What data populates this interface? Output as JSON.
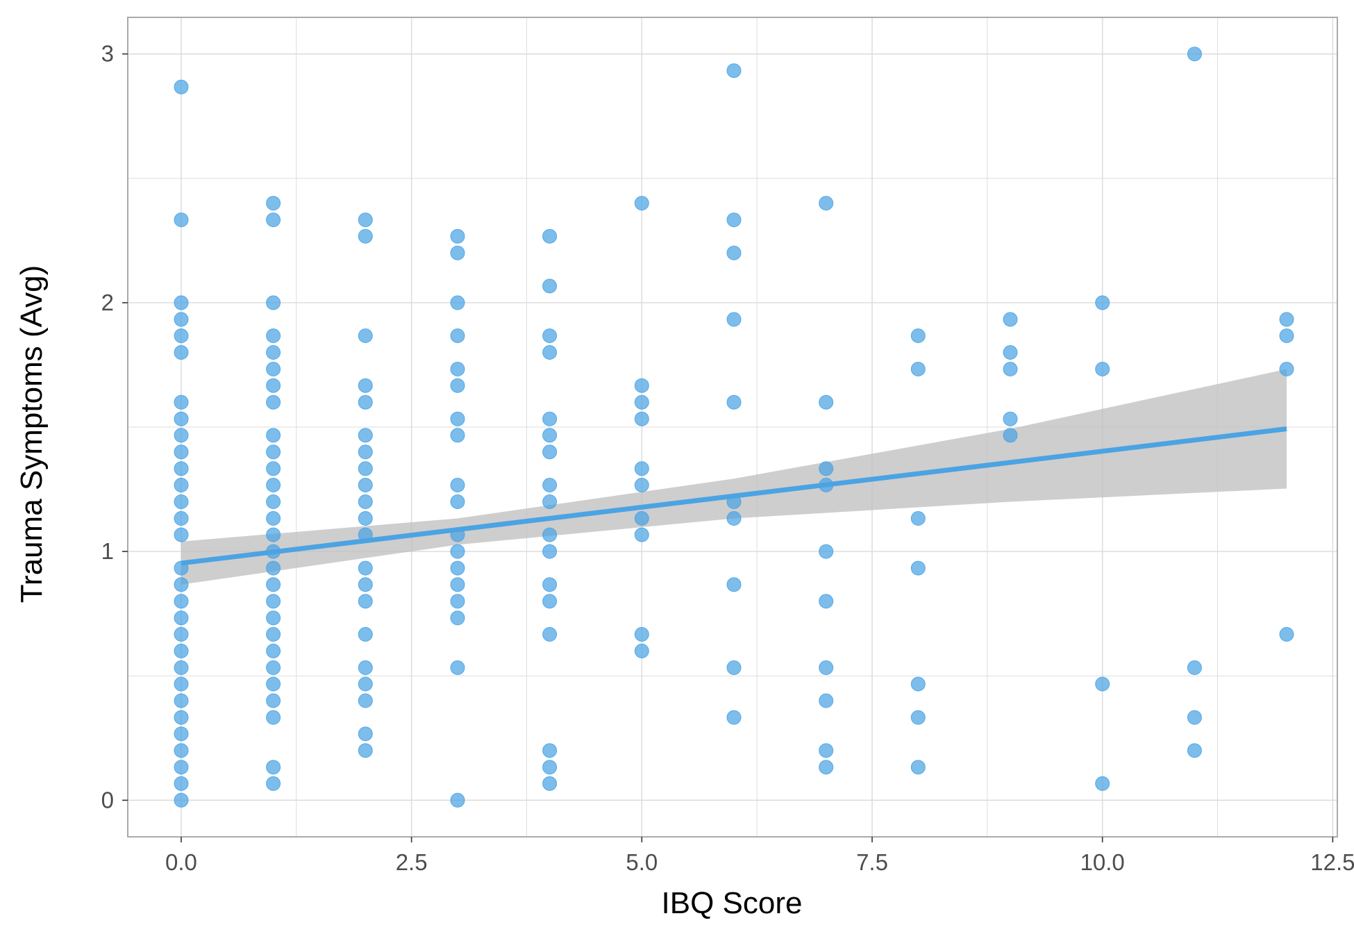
{
  "chart_data": {
    "type": "scatter",
    "title": "",
    "xlabel": "IBQ Score",
    "ylabel": "Trauma Symptoms (Avg)",
    "xlim": [
      -0.58,
      12.55
    ],
    "ylim": [
      -0.147,
      3.147
    ],
    "x_ticks": [
      0,
      2.5,
      5,
      7.5,
      10,
      12.5
    ],
    "x_tick_labels": [
      "0.0",
      "2.5",
      "5.0",
      "7.5",
      "10.0",
      "12.5"
    ],
    "y_ticks": [
      0,
      1,
      2,
      3
    ],
    "y_tick_labels": [
      "0",
      "1",
      "2",
      "3"
    ],
    "grid": true,
    "legend": "none",
    "point_color": "#4BA3E3",
    "fit_color": "#4BA3E3",
    "band_color": "#BEBEBE",
    "panel_border_color": "#AAAAAA",
    "grid_color": "#DDDDDD",
    "points": [
      [
        0,
        2.867
      ],
      [
        0,
        2.333
      ],
      [
        0,
        2.0
      ],
      [
        0,
        1.933
      ],
      [
        0,
        1.867
      ],
      [
        0,
        1.8
      ],
      [
        0,
        1.6
      ],
      [
        0,
        1.533
      ],
      [
        0,
        1.467
      ],
      [
        0,
        1.4
      ],
      [
        0,
        1.333
      ],
      [
        0,
        1.267
      ],
      [
        0,
        1.2
      ],
      [
        0,
        1.133
      ],
      [
        0,
        1.067
      ],
      [
        0,
        0.933
      ],
      [
        0,
        0.867
      ],
      [
        0,
        0.8
      ],
      [
        0,
        0.733
      ],
      [
        0,
        0.667
      ],
      [
        0,
        0.6
      ],
      [
        0,
        0.533
      ],
      [
        0,
        0.467
      ],
      [
        0,
        0.4
      ],
      [
        0,
        0.333
      ],
      [
        0,
        0.267
      ],
      [
        0,
        0.2
      ],
      [
        0,
        0.133
      ],
      [
        0,
        0.067
      ],
      [
        0,
        0.0
      ],
      [
        1,
        2.4
      ],
      [
        1,
        2.333
      ],
      [
        1,
        2.0
      ],
      [
        1,
        1.867
      ],
      [
        1,
        1.8
      ],
      [
        1,
        1.733
      ],
      [
        1,
        1.667
      ],
      [
        1,
        1.6
      ],
      [
        1,
        1.467
      ],
      [
        1,
        1.4
      ],
      [
        1,
        1.333
      ],
      [
        1,
        1.267
      ],
      [
        1,
        1.2
      ],
      [
        1,
        1.133
      ],
      [
        1,
        1.067
      ],
      [
        1,
        1.0
      ],
      [
        1,
        0.933
      ],
      [
        1,
        0.867
      ],
      [
        1,
        0.8
      ],
      [
        1,
        0.733
      ],
      [
        1,
        0.667
      ],
      [
        1,
        0.6
      ],
      [
        1,
        0.533
      ],
      [
        1,
        0.467
      ],
      [
        1,
        0.4
      ],
      [
        1,
        0.333
      ],
      [
        1,
        0.133
      ],
      [
        1,
        0.067
      ],
      [
        2,
        2.333
      ],
      [
        2,
        2.267
      ],
      [
        2,
        1.867
      ],
      [
        2,
        1.667
      ],
      [
        2,
        1.6
      ],
      [
        2,
        1.467
      ],
      [
        2,
        1.4
      ],
      [
        2,
        1.333
      ],
      [
        2,
        1.267
      ],
      [
        2,
        1.2
      ],
      [
        2,
        1.133
      ],
      [
        2,
        1.067
      ],
      [
        2,
        0.933
      ],
      [
        2,
        0.867
      ],
      [
        2,
        0.8
      ],
      [
        2,
        0.667
      ],
      [
        2,
        0.533
      ],
      [
        2,
        0.467
      ],
      [
        2,
        0.4
      ],
      [
        2,
        0.267
      ],
      [
        2,
        0.2
      ],
      [
        3,
        2.267
      ],
      [
        3,
        2.2
      ],
      [
        3,
        2.0
      ],
      [
        3,
        1.867
      ],
      [
        3,
        1.733
      ],
      [
        3,
        1.667
      ],
      [
        3,
        1.533
      ],
      [
        3,
        1.467
      ],
      [
        3,
        1.267
      ],
      [
        3,
        1.2
      ],
      [
        3,
        1.067
      ],
      [
        3,
        1.0
      ],
      [
        3,
        0.933
      ],
      [
        3,
        0.867
      ],
      [
        3,
        0.8
      ],
      [
        3,
        0.733
      ],
      [
        3,
        0.533
      ],
      [
        3,
        0.0
      ],
      [
        4,
        2.267
      ],
      [
        4,
        2.067
      ],
      [
        4,
        1.867
      ],
      [
        4,
        1.8
      ],
      [
        4,
        1.533
      ],
      [
        4,
        1.467
      ],
      [
        4,
        1.4
      ],
      [
        4,
        1.267
      ],
      [
        4,
        1.2
      ],
      [
        4,
        1.067
      ],
      [
        4,
        1.0
      ],
      [
        4,
        0.867
      ],
      [
        4,
        0.8
      ],
      [
        4,
        0.667
      ],
      [
        4,
        0.2
      ],
      [
        4,
        0.133
      ],
      [
        4,
        0.067
      ],
      [
        5,
        2.4
      ],
      [
        5,
        1.667
      ],
      [
        5,
        1.6
      ],
      [
        5,
        1.533
      ],
      [
        5,
        1.333
      ],
      [
        5,
        1.267
      ],
      [
        5,
        1.133
      ],
      [
        5,
        1.067
      ],
      [
        5,
        0.667
      ],
      [
        5,
        0.6
      ],
      [
        6,
        2.933
      ],
      [
        6,
        2.333
      ],
      [
        6,
        2.2
      ],
      [
        6,
        1.933
      ],
      [
        6,
        1.6
      ],
      [
        6,
        1.2
      ],
      [
        6,
        1.133
      ],
      [
        6,
        0.867
      ],
      [
        6,
        0.533
      ],
      [
        6,
        0.333
      ],
      [
        7,
        2.4
      ],
      [
        7,
        1.6
      ],
      [
        7,
        1.333
      ],
      [
        7,
        1.267
      ],
      [
        7,
        1.0
      ],
      [
        7,
        0.8
      ],
      [
        7,
        0.533
      ],
      [
        7,
        0.4
      ],
      [
        7,
        0.2
      ],
      [
        7,
        0.133
      ],
      [
        8,
        1.867
      ],
      [
        8,
        1.733
      ],
      [
        8,
        1.133
      ],
      [
        8,
        0.933
      ],
      [
        8,
        0.467
      ],
      [
        8,
        0.333
      ],
      [
        8,
        0.133
      ],
      [
        9,
        1.933
      ],
      [
        9,
        1.8
      ],
      [
        9,
        1.733
      ],
      [
        9,
        1.533
      ],
      [
        9,
        1.467
      ],
      [
        10,
        2.0
      ],
      [
        10,
        1.733
      ],
      [
        10,
        0.467
      ],
      [
        10,
        0.067
      ],
      [
        11,
        3.0
      ],
      [
        11,
        0.533
      ],
      [
        11,
        0.333
      ],
      [
        11,
        0.2
      ],
      [
        12,
        1.933
      ],
      [
        12,
        1.867
      ],
      [
        12,
        1.733
      ],
      [
        12,
        0.667
      ]
    ],
    "fit_line": {
      "x": [
        0,
        12
      ],
      "y": [
        0.953,
        1.493
      ]
    },
    "confidence_band": {
      "x": [
        0,
        3,
        6,
        9,
        12
      ],
      "lower": [
        0.867,
        1.027,
        1.133,
        1.2,
        1.253
      ],
      "upper": [
        1.04,
        1.133,
        1.293,
        1.493,
        1.733
      ]
    }
  }
}
